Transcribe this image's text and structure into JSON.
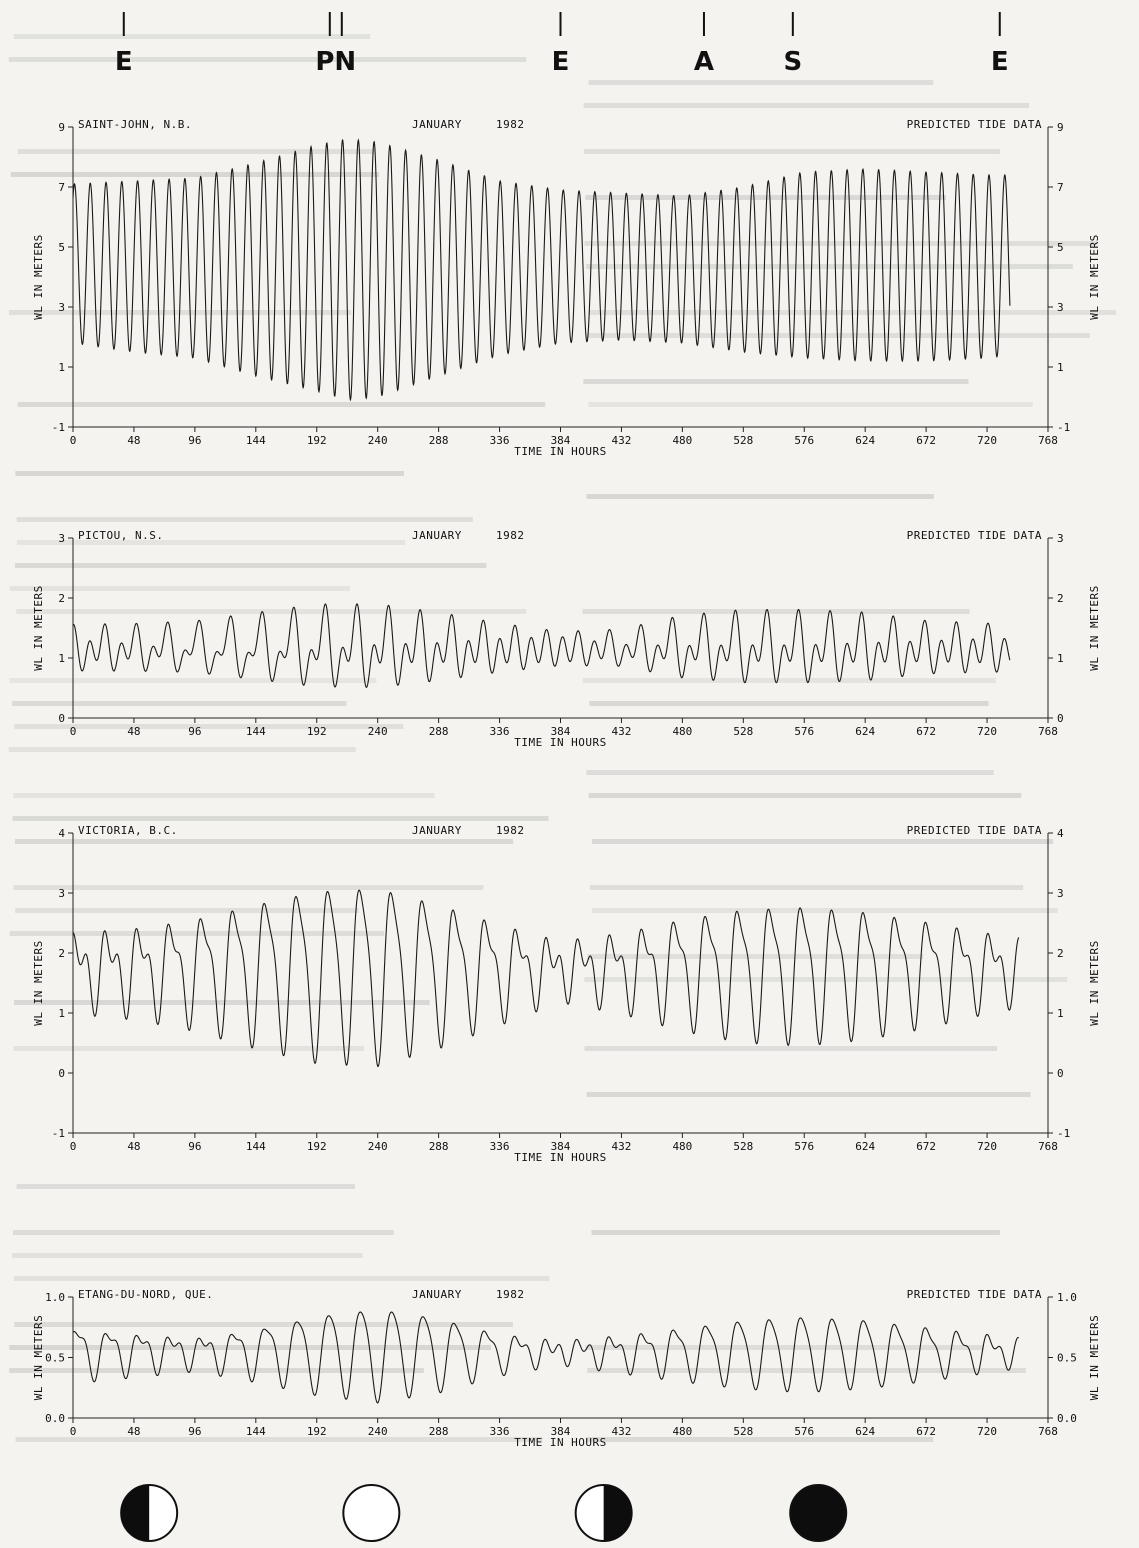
{
  "markers": [
    {
      "label": "E",
      "hour": 40
    },
    {
      "label": "PN",
      "hour": 207
    },
    {
      "label": "E",
      "hour": 384
    },
    {
      "label": "A",
      "hour": 497
    },
    {
      "label": "S",
      "hour": 567
    },
    {
      "label": "E",
      "hour": 730
    }
  ],
  "moon_phases": [
    {
      "phase": "first-quarter",
      "hour": 60
    },
    {
      "phase": "full",
      "hour": 235
    },
    {
      "phase": "last-quarter",
      "hour": 418
    },
    {
      "phase": "new",
      "hour": 587
    }
  ],
  "chart_data": [
    {
      "type": "line",
      "station": "SAINT-JOHN, N.B.",
      "month": "JANUARY",
      "year": "1982",
      "source": "PREDICTED TIDE DATA",
      "xlabel": "TIME IN HOURS",
      "ylabel": "WL IN METERS",
      "xlim": [
        0,
        768
      ],
      "ylim": [
        -1,
        9
      ],
      "xticks": [
        0,
        48,
        96,
        144,
        192,
        240,
        288,
        336,
        384,
        432,
        480,
        528,
        576,
        624,
        672,
        720,
        768
      ],
      "yticks": [
        -1,
        1,
        3,
        5,
        7,
        9
      ],
      "series": [
        {
          "x_start": 0,
          "x_end": 738,
          "tidal_period_hours": 12.42,
          "envelope_hours": [
            0,
            48,
            96,
            144,
            192,
            216,
            240,
            288,
            336,
            384,
            432,
            480,
            528,
            576,
            624,
            672,
            720,
            738
          ],
          "high_water": [
            7.1,
            7.2,
            7.3,
            7.8,
            8.4,
            8.6,
            8.5,
            7.9,
            7.2,
            6.9,
            6.8,
            6.7,
            7.0,
            7.5,
            7.6,
            7.5,
            7.4,
            7.4
          ],
          "low_water": [
            1.8,
            1.5,
            1.3,
            0.7,
            0.2,
            -0.1,
            0.0,
            0.7,
            1.4,
            1.8,
            1.9,
            1.8,
            1.5,
            1.3,
            1.2,
            1.2,
            1.3,
            1.4
          ]
        }
      ]
    },
    {
      "type": "line",
      "station": "PICTOU, N.S.",
      "month": "JANUARY",
      "year": "1982",
      "source": "PREDICTED TIDE DATA",
      "xlabel": "TIME IN HOURS",
      "ylabel": "WL IN METERS",
      "xlim": [
        0,
        768
      ],
      "ylim": [
        0,
        3
      ],
      "xticks": [
        0,
        48,
        96,
        144,
        192,
        240,
        288,
        336,
        384,
        432,
        480,
        528,
        576,
        624,
        672,
        720,
        768
      ],
      "yticks": [
        0,
        1,
        2,
        3
      ],
      "series": [
        {
          "x_start": 0,
          "x_end": 738,
          "mean_level": 1.15,
          "envelope_hours": [
            0,
            48,
            96,
            144,
            192,
            240,
            288,
            336,
            384,
            432,
            480,
            528,
            576,
            624,
            672,
            720,
            738
          ],
          "semidiurnal_amplitude": [
            0.28,
            0.25,
            0.2,
            0.25,
            0.35,
            0.4,
            0.35,
            0.3,
            0.25,
            0.2,
            0.3,
            0.35,
            0.35,
            0.35,
            0.3,
            0.3,
            0.3
          ],
          "diurnal_amplitude": [
            0.15,
            0.2,
            0.3,
            0.4,
            0.45,
            0.4,
            0.3,
            0.15,
            0.05,
            0.15,
            0.3,
            0.35,
            0.35,
            0.3,
            0.2,
            0.15,
            0.15
          ]
        }
      ]
    },
    {
      "type": "line",
      "station": "VICTORIA, B.C.",
      "month": "JANUARY",
      "year": "1982",
      "source": "PREDICTED TIDE DATA",
      "xlabel": "TIME IN HOURS",
      "ylabel": "WL IN METERS",
      "xlim": [
        0,
        768
      ],
      "ylim": [
        -1,
        4
      ],
      "xticks": [
        0,
        48,
        96,
        144,
        192,
        240,
        288,
        336,
        384,
        432,
        480,
        528,
        576,
        624,
        672,
        720,
        768
      ],
      "yticks": [
        -1,
        0,
        1,
        2,
        3,
        4
      ],
      "series": [
        {
          "x_start": 0,
          "x_end": 745,
          "mean_level": 1.75,
          "envelope_hours": [
            0,
            48,
            96,
            144,
            192,
            240,
            288,
            336,
            384,
            432,
            480,
            528,
            576,
            624,
            672,
            720,
            745
          ],
          "semidiurnal_amplitude": [
            0.35,
            0.35,
            0.3,
            0.3,
            0.3,
            0.3,
            0.3,
            0.3,
            0.3,
            0.3,
            0.3,
            0.3,
            0.3,
            0.3,
            0.3,
            0.3,
            0.3
          ],
          "diurnal_amplitude": [
            0.45,
            0.55,
            0.8,
            1.1,
            1.35,
            1.4,
            1.1,
            0.7,
            0.3,
            0.5,
            0.8,
            1.0,
            1.05,
            0.95,
            0.75,
            0.5,
            0.4
          ]
        }
      ]
    },
    {
      "type": "line",
      "station": "ETANG-DU-NORD, QUE.",
      "month": "JANUARY",
      "year": "1982",
      "source": "PREDICTED TIDE DATA",
      "xlabel": "TIME IN HOURS",
      "ylabel": "WL IN METERS",
      "xlim": [
        0,
        768
      ],
      "ylim": [
        0.0,
        1.0
      ],
      "xticks": [
        0,
        48,
        96,
        144,
        192,
        240,
        288,
        336,
        384,
        432,
        480,
        528,
        576,
        624,
        672,
        720,
        768
      ],
      "ytick_labels": [
        "0.0",
        "0.5",
        "1.0"
      ],
      "yticks": [
        0.0,
        0.5,
        1.0
      ],
      "series": [
        {
          "x_start": 0,
          "x_end": 745,
          "mean_level": 0.55,
          "period_hours": 24.8,
          "envelope_hours": [
            0,
            48,
            96,
            144,
            192,
            240,
            288,
            336,
            384,
            432,
            480,
            528,
            576,
            624,
            672,
            720,
            745
          ],
          "diurnal_amplitude": [
            0.2,
            0.15,
            0.1,
            0.2,
            0.32,
            0.38,
            0.3,
            0.15,
            0.05,
            0.12,
            0.2,
            0.27,
            0.3,
            0.27,
            0.2,
            0.12,
            0.08
          ],
          "semidiurnal_amplitude": [
            0.07,
            0.07,
            0.07,
            0.06,
            0.05,
            0.05,
            0.05,
            0.06,
            0.07,
            0.07,
            0.06,
            0.05,
            0.05,
            0.05,
            0.06,
            0.07,
            0.07
          ]
        }
      ]
    }
  ]
}
